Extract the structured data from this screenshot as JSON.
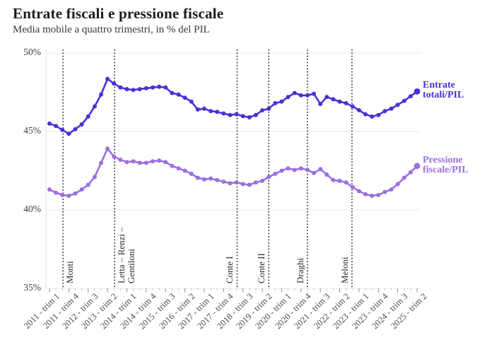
{
  "title": "Entrate fiscali e pressione fiscale",
  "subtitle": "Media mobile a quattro trimestri, in % del PIL",
  "chart_data": {
    "type": "line",
    "unit": "% del PIL",
    "n_points": 58,
    "x_tick_every": 3,
    "x_tick_labels": [
      "2011 - trim 1",
      "2011 - trim 4",
      "2012 - trim 3",
      "2013 - trim 2",
      "2014 - trim 1",
      "2014 - trim 4",
      "2015 - trim 3",
      "2016 - trim 2",
      "2017 - trim 1",
      "2017 - trim 4",
      "2018 - trim 3",
      "2019 - trim 2",
      "2020 - trim 1",
      "2020 - trim 4",
      "2021 - trim 3",
      "2022 - trim 2",
      "2023 - trim 1",
      "2023 - trim 4",
      "2024 - trim 3",
      "2025 - trim 2"
    ],
    "ylim": [
      35,
      50
    ],
    "ytick_values": [
      50,
      45,
      40,
      35
    ],
    "ytick_labels": [
      "50%",
      "45%",
      "40%",
      "35%"
    ],
    "grid": "horizontal",
    "legend_position": "right-of-line-ends",
    "series": [
      {
        "name": "Entrate totali/PIL",
        "legend_lines": [
          "Entrate",
          "totali/PIL"
        ],
        "color": "#4632d7",
        "values": [
          45.5,
          45.35,
          45.1,
          44.85,
          45.15,
          45.45,
          45.95,
          46.6,
          47.35,
          48.35,
          48.05,
          47.8,
          47.7,
          47.65,
          47.7,
          47.75,
          47.8,
          47.85,
          47.8,
          47.45,
          47.35,
          47.15,
          46.9,
          46.4,
          46.45,
          46.3,
          46.25,
          46.15,
          46.05,
          46.1,
          45.98,
          45.9,
          46.05,
          46.35,
          46.45,
          46.8,
          46.9,
          47.2,
          47.45,
          47.3,
          47.3,
          47.4,
          46.75,
          47.2,
          47.05,
          46.9,
          46.8,
          46.6,
          46.35,
          46.1,
          45.95,
          46.05,
          46.3,
          46.45,
          46.7,
          46.95,
          47.25,
          47.55
        ]
      },
      {
        "name": "Pressione fiscale/PIL",
        "legend_lines": [
          "Pressione",
          "fiscale/PIL"
        ],
        "color": "#9b6ee1",
        "values": [
          41.3,
          41.1,
          40.95,
          40.9,
          41.05,
          41.3,
          41.6,
          42.1,
          43.0,
          43.9,
          43.4,
          43.2,
          43.05,
          43.1,
          43.0,
          43.0,
          43.1,
          43.15,
          43.05,
          42.8,
          42.65,
          42.5,
          42.3,
          42.05,
          41.95,
          42.0,
          41.9,
          41.8,
          41.7,
          41.75,
          41.65,
          41.6,
          41.75,
          41.85,
          42.1,
          42.3,
          42.5,
          42.65,
          42.55,
          42.65,
          42.55,
          42.35,
          42.6,
          42.25,
          41.9,
          41.85,
          41.75,
          41.45,
          41.2,
          41.0,
          40.9,
          40.95,
          41.15,
          41.3,
          41.65,
          42.05,
          42.4,
          42.8
        ]
      }
    ],
    "government_markers": [
      {
        "label": "Monti",
        "label_lines": [
          "Monti"
        ],
        "quarter_index": 2.1,
        "label_side": "right"
      },
      {
        "label": "Letta – Renzi – Gentiloni",
        "label_lines": [
          "Letta – Renzi –",
          "Gentiloni"
        ],
        "quarter_index": 10.1,
        "label_side": "right"
      },
      {
        "label": "Conte I",
        "label_lines": [
          "Conte I"
        ],
        "quarter_index": 29.1,
        "label_side": "left"
      },
      {
        "label": "Conte II",
        "label_lines": [
          "Conte II"
        ],
        "quarter_index": 34,
        "label_side": "left"
      },
      {
        "label": "Draghi",
        "label_lines": [
          "Draghi"
        ],
        "quarter_index": 40,
        "label_side": "left"
      },
      {
        "label": "Meloni",
        "label_lines": [
          "Meloni"
        ],
        "quarter_index": 46.9,
        "label_side": "left"
      }
    ]
  }
}
